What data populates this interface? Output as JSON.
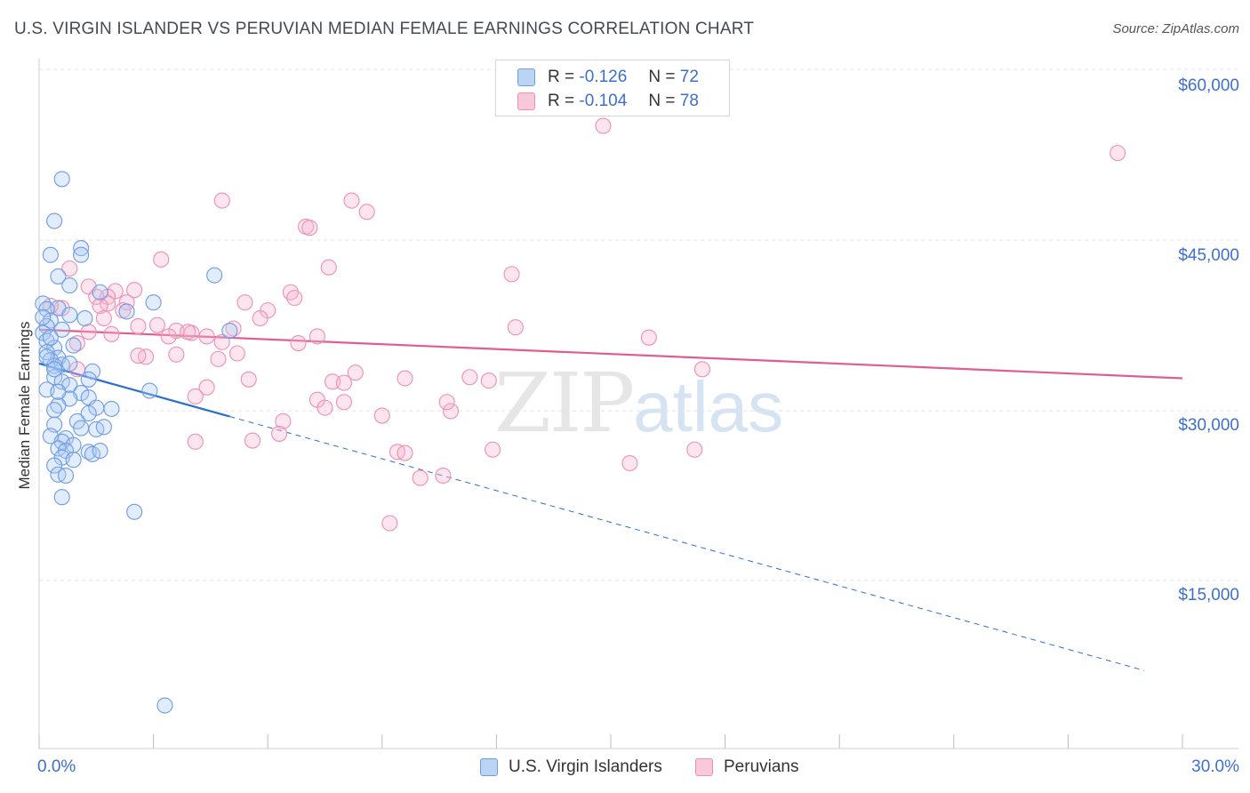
{
  "title": "U.S. VIRGIN ISLANDER VS PERUVIAN MEDIAN FEMALE EARNINGS CORRELATION CHART",
  "source": "Source: ZipAtlas.com",
  "legend_top": {
    "blue": {
      "r_label": "R =",
      "r_value": "-0.126",
      "n_label": "N =",
      "n_value": "72"
    },
    "pink": {
      "r_label": "R =",
      "r_value": "-0.104",
      "n_label": "N =",
      "n_value": "78"
    }
  },
  "watermark": {
    "zip": "ZIP",
    "atlas": "atlas"
  },
  "colors": {
    "blue": "#6f9be0",
    "blue_line": "#2b6fd1",
    "pink": "#ee8fb1",
    "pink_line": "#e05d8f",
    "axis_text": "#3d6fcc"
  },
  "chart_data": {
    "type": "scatter",
    "title": "U.S. VIRGIN ISLANDER VS PERUVIAN MEDIAN FEMALE EARNINGS CORRELATION CHART",
    "xlabel": "",
    "ylabel": "Median Female Earnings",
    "xlim": [
      0,
      30
    ],
    "ylim": [
      0,
      62000
    ],
    "x_tick_labels": [
      "0.0%",
      "30.0%"
    ],
    "y_ticks": [
      15000,
      30000,
      45000,
      60000
    ],
    "y_tick_labels": [
      "$15,000",
      "$30,000",
      "$45,000",
      "$60,000"
    ],
    "series": [
      {
        "name": "U.S. Virgin Islanders",
        "r": -0.126,
        "n": 72,
        "trend": {
          "x0": 0,
          "y0": 35500,
          "x1_solid": 5.0,
          "x1": 29.0,
          "slope_per_pct": -935
        },
        "points": [
          [
            0.6,
            51800
          ],
          [
            0.4,
            48100
          ],
          [
            1.1,
            45700
          ],
          [
            0.3,
            45100
          ],
          [
            1.1,
            45100
          ],
          [
            4.6,
            43300
          ],
          [
            0.5,
            43200
          ],
          [
            0.8,
            42400
          ],
          [
            1.6,
            41800
          ],
          [
            3.0,
            40900
          ],
          [
            0.1,
            40800
          ],
          [
            0.5,
            40400
          ],
          [
            0.2,
            40300
          ],
          [
            0.8,
            39800
          ],
          [
            0.3,
            39300
          ],
          [
            1.2,
            39500
          ],
          [
            2.3,
            40100
          ],
          [
            0.2,
            38800
          ],
          [
            0.1,
            38200
          ],
          [
            5.0,
            38400
          ],
          [
            0.2,
            37500
          ],
          [
            0.4,
            36900
          ],
          [
            0.2,
            36500
          ],
          [
            0.5,
            36000
          ],
          [
            0.3,
            35800
          ],
          [
            0.6,
            35400
          ],
          [
            0.8,
            35500
          ],
          [
            0.4,
            35300
          ],
          [
            1.4,
            34800
          ],
          [
            1.3,
            34100
          ],
          [
            0.4,
            34300
          ],
          [
            0.6,
            33900
          ],
          [
            0.8,
            33600
          ],
          [
            0.2,
            33200
          ],
          [
            1.1,
            32900
          ],
          [
            1.3,
            32500
          ],
          [
            2.9,
            33100
          ],
          [
            0.8,
            32400
          ],
          [
            0.5,
            31800
          ],
          [
            1.5,
            31600
          ],
          [
            0.4,
            31400
          ],
          [
            1.3,
            31100
          ],
          [
            1.9,
            31500
          ],
          [
            1.0,
            30400
          ],
          [
            0.4,
            30100
          ],
          [
            1.1,
            29800
          ],
          [
            1.5,
            29700
          ],
          [
            1.7,
            29900
          ],
          [
            0.3,
            29100
          ],
          [
            0.7,
            28900
          ],
          [
            0.6,
            28600
          ],
          [
            0.9,
            28300
          ],
          [
            0.5,
            28000
          ],
          [
            0.7,
            27800
          ],
          [
            1.3,
            27700
          ],
          [
            1.4,
            27500
          ],
          [
            1.6,
            27800
          ],
          [
            0.6,
            27200
          ],
          [
            0.9,
            27000
          ],
          [
            0.4,
            26500
          ],
          [
            0.5,
            25700
          ],
          [
            0.7,
            25600
          ],
          [
            0.6,
            23700
          ],
          [
            2.5,
            22400
          ],
          [
            3.3,
            5300
          ],
          [
            0.1,
            39600
          ],
          [
            0.2,
            36100
          ],
          [
            0.6,
            38500
          ],
          [
            0.9,
            37100
          ],
          [
            0.3,
            37800
          ],
          [
            0.4,
            35000
          ],
          [
            0.5,
            33000
          ]
        ]
      },
      {
        "name": "Peruvians",
        "r": -0.104,
        "n": 78,
        "trend": {
          "x0": 0,
          "y0": 38500,
          "x1": 30,
          "y1": 34200
        },
        "points": [
          [
            14.8,
            56500
          ],
          [
            28.3,
            54100
          ],
          [
            4.8,
            49900
          ],
          [
            8.2,
            49900
          ],
          [
            8.6,
            48900
          ],
          [
            7.0,
            47600
          ],
          [
            7.1,
            47500
          ],
          [
            3.2,
            44700
          ],
          [
            7.6,
            44000
          ],
          [
            12.4,
            43400
          ],
          [
            0.8,
            43900
          ],
          [
            1.3,
            42300
          ],
          [
            2.5,
            42000
          ],
          [
            2.0,
            41900
          ],
          [
            1.8,
            41400
          ],
          [
            1.5,
            41400
          ],
          [
            6.6,
            41800
          ],
          [
            6.7,
            41300
          ],
          [
            5.4,
            40900
          ],
          [
            2.3,
            40900
          ],
          [
            1.8,
            40800
          ],
          [
            1.6,
            40600
          ],
          [
            0.6,
            40400
          ],
          [
            2.2,
            40200
          ],
          [
            6.0,
            40200
          ],
          [
            5.8,
            39500
          ],
          [
            1.7,
            39500
          ],
          [
            5.1,
            38600
          ],
          [
            3.6,
            38400
          ],
          [
            2.6,
            38800
          ],
          [
            3.1,
            38900
          ],
          [
            4.0,
            38200
          ],
          [
            4.4,
            37900
          ],
          [
            3.4,
            37900
          ],
          [
            1.9,
            38100
          ],
          [
            7.3,
            37900
          ],
          [
            12.5,
            38700
          ],
          [
            16.0,
            37800
          ],
          [
            6.8,
            37300
          ],
          [
            4.8,
            37400
          ],
          [
            1.0,
            37300
          ],
          [
            3.6,
            36300
          ],
          [
            2.8,
            36100
          ],
          [
            5.2,
            36400
          ],
          [
            4.7,
            35900
          ],
          [
            17.4,
            35000
          ],
          [
            8.3,
            34700
          ],
          [
            9.6,
            34200
          ],
          [
            11.3,
            34300
          ],
          [
            11.8,
            34000
          ],
          [
            5.5,
            34100
          ],
          [
            7.7,
            33900
          ],
          [
            8.0,
            33800
          ],
          [
            4.4,
            33400
          ],
          [
            4.1,
            32600
          ],
          [
            7.3,
            32300
          ],
          [
            7.5,
            31600
          ],
          [
            8.0,
            32100
          ],
          [
            10.8,
            31300
          ],
          [
            6.4,
            30400
          ],
          [
            9.0,
            30900
          ],
          [
            6.3,
            29300
          ],
          [
            5.6,
            28700
          ],
          [
            4.1,
            28600
          ],
          [
            11.9,
            27900
          ],
          [
            9.4,
            27700
          ],
          [
            9.6,
            27600
          ],
          [
            15.5,
            26700
          ],
          [
            10.0,
            25400
          ],
          [
            10.6,
            25600
          ],
          [
            17.2,
            27900
          ],
          [
            9.2,
            21400
          ],
          [
            0.3,
            40600
          ],
          [
            1.3,
            38300
          ],
          [
            2.6,
            36200
          ],
          [
            3.9,
            38300
          ],
          [
            10.7,
            32100
          ],
          [
            1.0,
            35000
          ]
        ]
      }
    ]
  }
}
